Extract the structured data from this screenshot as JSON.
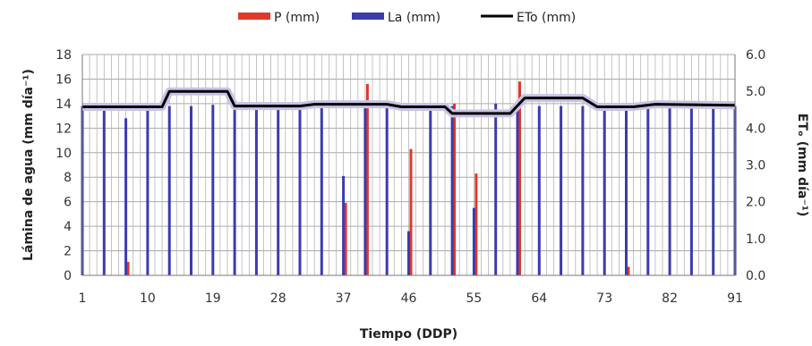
{
  "chart_data": {
    "type": "bar",
    "xlabel": "Tiempo (DDP)",
    "ylabel_left": "Lámina de agua (mm día⁻¹)",
    "ylabel_right": "ETₒ (mm día⁻¹)",
    "xlim": [
      1,
      91
    ],
    "ylim_left": [
      0,
      18
    ],
    "ylim_right": [
      0,
      6
    ],
    "x_ticks": [
      1,
      10,
      19,
      28,
      37,
      46,
      55,
      64,
      73,
      82,
      91
    ],
    "y_ticks_left": [
      "0",
      "2",
      "4",
      "6",
      "8",
      "10",
      "12",
      "14",
      "16",
      "18"
    ],
    "y_ticks_right": [
      "0.0",
      "1.0",
      "2.0",
      "3.0",
      "4.0",
      "5.0",
      "6.0"
    ],
    "grid": true,
    "legend_position": "top",
    "series": [
      {
        "name": "P (mm)",
        "type": "bar",
        "axis": "left",
        "color": "#e2382a",
        "points": [
          [
            7,
            1.1
          ],
          [
            37,
            5.9
          ],
          [
            40,
            15.6
          ],
          [
            46,
            10.3
          ],
          [
            52,
            14.0
          ],
          [
            55,
            8.3
          ],
          [
            61,
            15.8
          ],
          [
            76,
            0.7
          ]
        ]
      },
      {
        "name": "La (mm)",
        "type": "bar",
        "axis": "left",
        "color": "#3b3bb0",
        "points": [
          [
            1,
            13.8
          ],
          [
            4,
            13.8
          ],
          [
            7,
            12.8
          ],
          [
            10,
            13.8
          ],
          [
            13,
            13.8
          ],
          [
            16,
            13.8
          ],
          [
            19,
            13.9
          ],
          [
            22,
            13.8
          ],
          [
            25,
            13.8
          ],
          [
            28,
            13.7
          ],
          [
            31,
            13.7
          ],
          [
            34,
            13.7
          ],
          [
            37,
            8.1
          ],
          [
            40,
            13.8
          ],
          [
            43,
            13.8
          ],
          [
            46,
            3.6
          ],
          [
            49,
            13.8
          ],
          [
            52,
            13.8
          ],
          [
            55,
            5.5
          ],
          [
            58,
            14.0
          ],
          [
            61,
            13.8
          ],
          [
            64,
            13.8
          ],
          [
            67,
            13.8
          ],
          [
            70,
            13.8
          ],
          [
            73,
            13.6
          ],
          [
            76,
            13.8
          ],
          [
            79,
            13.8
          ],
          [
            82,
            13.8
          ],
          [
            85,
            13.8
          ],
          [
            88,
            13.8
          ],
          [
            91,
            13.8
          ]
        ]
      },
      {
        "name": "ETo (mm)",
        "type": "line",
        "axis": "right",
        "color": "#000000",
        "points": [
          [
            1,
            4.58
          ],
          [
            12,
            4.58
          ],
          [
            13,
            5.0
          ],
          [
            21,
            5.0
          ],
          [
            22,
            4.6
          ],
          [
            31,
            4.6
          ],
          [
            33,
            4.65
          ],
          [
            43,
            4.65
          ],
          [
            45,
            4.58
          ],
          [
            51,
            4.58
          ],
          [
            52,
            4.4
          ],
          [
            60,
            4.4
          ],
          [
            62,
            4.82
          ],
          [
            70,
            4.82
          ],
          [
            72,
            4.58
          ],
          [
            77,
            4.58
          ],
          [
            80,
            4.65
          ],
          [
            91,
            4.62
          ]
        ]
      }
    ]
  }
}
